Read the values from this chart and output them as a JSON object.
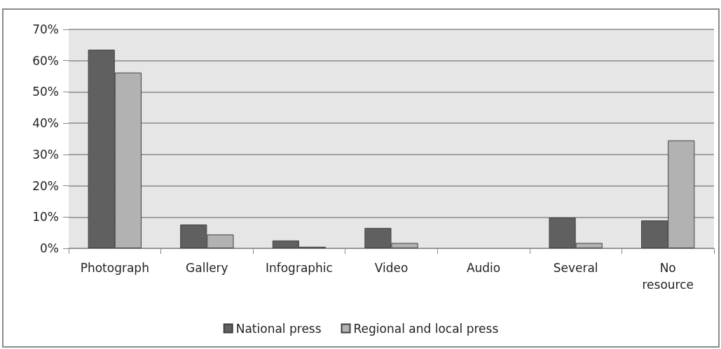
{
  "chart_data": {
    "type": "bar",
    "categories": [
      "Photograph",
      "Gallery",
      "Infographic",
      "Video",
      "Audio",
      "Several",
      "No resource"
    ],
    "series": [
      {
        "name": "National press",
        "color": "#606060",
        "values": [
          63.5,
          7.6,
          2.5,
          6.5,
          0,
          9.8,
          8.9
        ]
      },
      {
        "name": "Regional and local press",
        "color": "#b2b2b2",
        "values": [
          56.2,
          4.4,
          0.5,
          1.7,
          0,
          1.7,
          34.5
        ]
      }
    ],
    "ylim": [
      0,
      70
    ],
    "yticks": [
      {
        "value": 0,
        "label": "0%"
      },
      {
        "value": 10,
        "label": "10%"
      },
      {
        "value": 20,
        "label": "20%"
      },
      {
        "value": 30,
        "label": "30%"
      },
      {
        "value": 40,
        "label": "40%"
      },
      {
        "value": 50,
        "label": "50%"
      },
      {
        "value": 60,
        "label": "60%"
      },
      {
        "value": 70,
        "label": "70%"
      }
    ],
    "grid": "y",
    "legend": "bottom"
  }
}
